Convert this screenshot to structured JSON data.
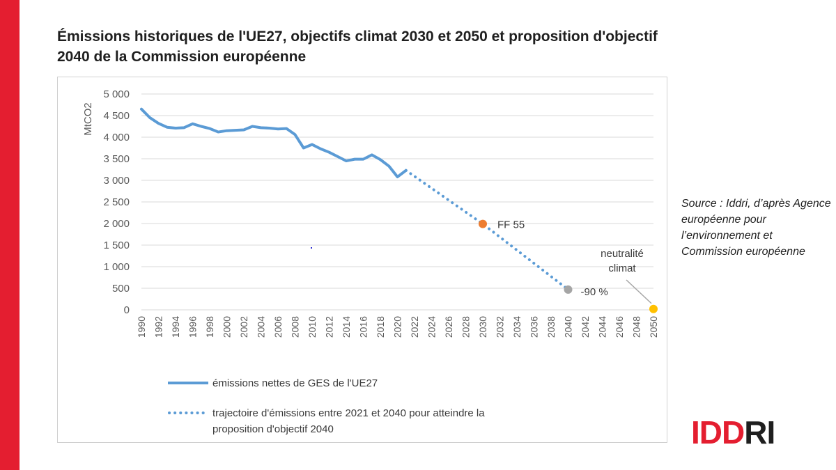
{
  "page": {
    "title": "Émissions historiques de l'UE27, objectifs climat 2030 et 2050 et proposition d'objectif 2040 de la Commission européenne",
    "source": "Source : Iddri, d’après Agence européenne pour l’environnement et Commission européenne",
    "logo": {
      "part1": "IDD",
      "part2": "RI"
    }
  },
  "colors": {
    "accent_red": "#e41e30",
    "logo_dark": "#1f1f1f",
    "series": "#5b9bd5",
    "ff55": "#ed7d31",
    "target2040": "#a5a5a5",
    "neutrality": "#ffc000",
    "grid": "#d9d9d9",
    "text": "#595959"
  },
  "chart_data": {
    "type": "line",
    "ylabel": "MtCO2",
    "xlabel": "",
    "ylim": [
      0,
      5000
    ],
    "yticks": [
      "0",
      "500",
      "1 000",
      "1 500",
      "2 000",
      "2 500",
      "3 000",
      "3 500",
      "4 000",
      "4 500",
      "5 000"
    ],
    "xlim": [
      1990,
      2050
    ],
    "xticks": [
      "1990",
      "1992",
      "1994",
      "1996",
      "1998",
      "2000",
      "2002",
      "2004",
      "2006",
      "2008",
      "2010",
      "2012",
      "2014",
      "2016",
      "2018",
      "2020",
      "2022",
      "2024",
      "2026",
      "2028",
      "2030",
      "2032",
      "2034",
      "2036",
      "2038",
      "2040",
      "2042",
      "2044",
      "2046",
      "2048",
      "2050"
    ],
    "grid": true,
    "legend_position": "bottom",
    "series": [
      {
        "name": "émissions nettes de GES de l'UE27",
        "style": "solid",
        "x": [
          1990,
          1991,
          1992,
          1993,
          1994,
          1995,
          1996,
          1997,
          1998,
          1999,
          2000,
          2001,
          2002,
          2003,
          2004,
          2005,
          2006,
          2007,
          2008,
          2009,
          2010,
          2011,
          2012,
          2013,
          2014,
          2015,
          2016,
          2017,
          2018,
          2019,
          2020,
          2021
        ],
        "y": [
          4650,
          4450,
          4320,
          4230,
          4210,
          4220,
          4310,
          4250,
          4200,
          4120,
          4150,
          4160,
          4170,
          4250,
          4220,
          4210,
          4190,
          4200,
          4060,
          3750,
          3830,
          3730,
          3650,
          3550,
          3450,
          3490,
          3490,
          3590,
          3480,
          3330,
          3080,
          3230
        ]
      },
      {
        "name": "trajectoire d'émissions entre 2021 et 2040 pour atteindre la proposition d'objectif 2040",
        "style": "dotted",
        "x": [
          2021,
          2030,
          2040
        ],
        "y": [
          3230,
          1990,
          470
        ]
      }
    ],
    "points": [
      {
        "x": 2030,
        "y": 1990,
        "label": "FF 55"
      },
      {
        "x": 2040,
        "y": 470,
        "label": "-90 %"
      },
      {
        "x": 2050,
        "y": 20,
        "label": "neutralité climat"
      }
    ],
    "legend": [
      {
        "label": "émissions nettes de GES de l'UE27",
        "style": "solid"
      },
      {
        "label": "trajectoire d'émissions entre 2021 et 2040 pour atteindre la proposition d'objectif 2040",
        "style": "dotted"
      }
    ]
  }
}
